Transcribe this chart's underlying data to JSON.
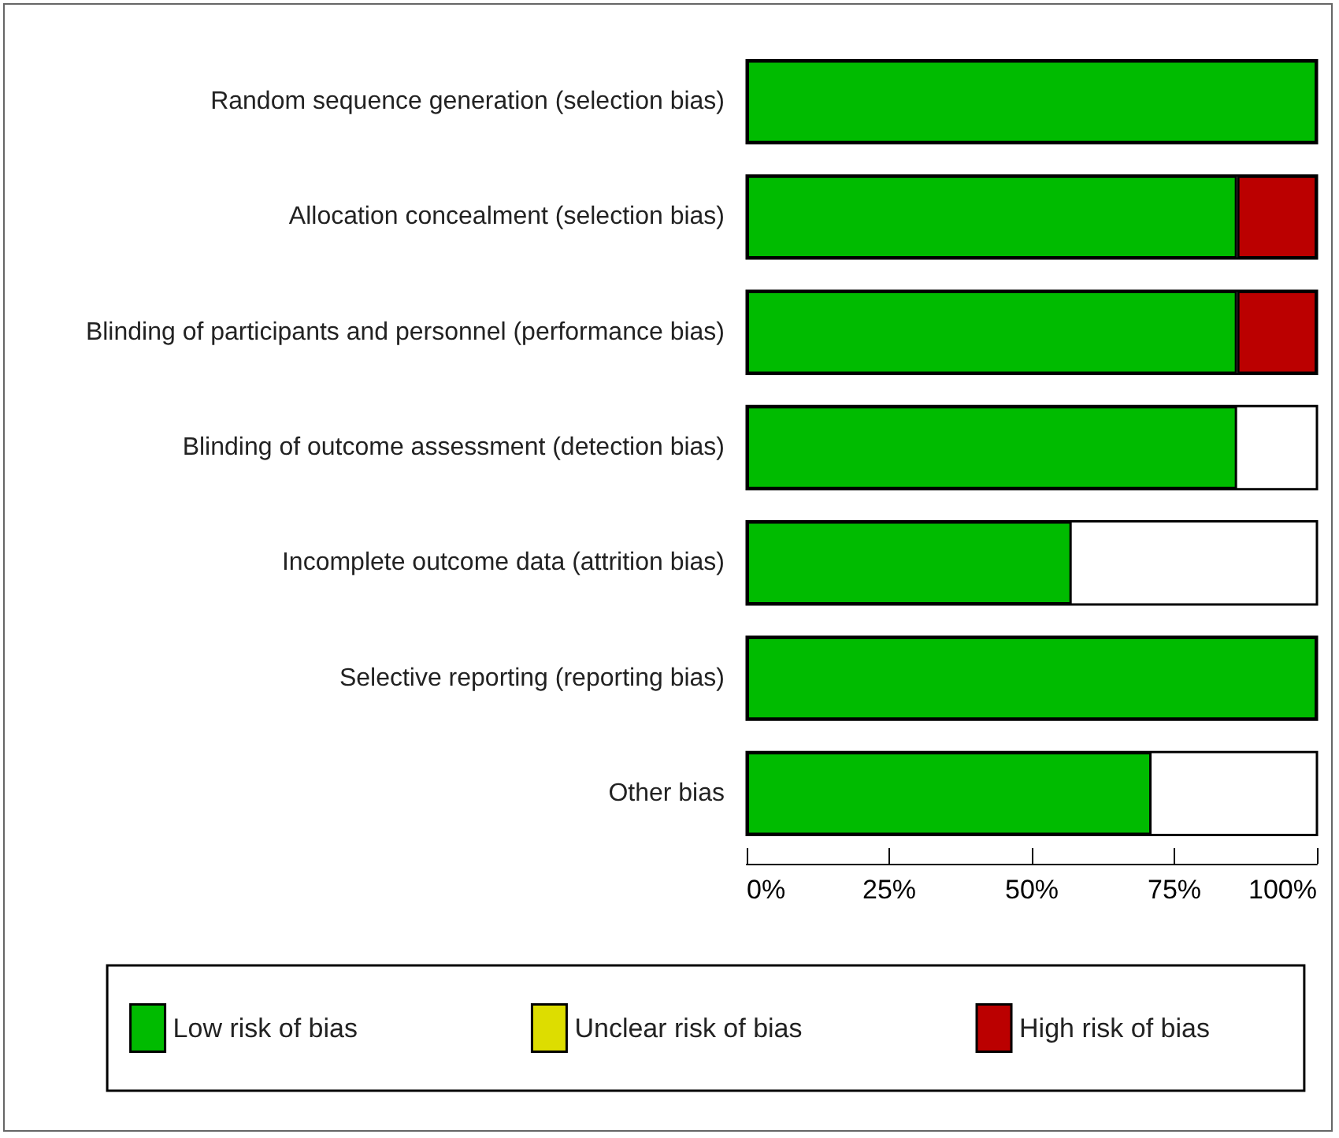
{
  "chart_data": {
    "type": "bar",
    "orientation": "horizontal",
    "stacked": true,
    "categories": [
      "Random sequence generation (selection bias)",
      "Allocation concealment (selection bias)",
      "Blinding of participants and personnel (performance bias)",
      "Blinding of outcome assessment (detection bias)",
      "Incomplete outcome data (attrition bias)",
      "Selective reporting (reporting bias)",
      "Other bias"
    ],
    "series": [
      {
        "name": "Low risk of bias",
        "color": "#00bb00",
        "values": [
          100,
          86,
          86,
          86,
          57,
          100,
          71
        ]
      },
      {
        "name": "Unclear risk of bias",
        "color": "#dddd00",
        "values": [
          null,
          null,
          null,
          null,
          null,
          null,
          null
        ]
      },
      {
        "name": "High risk of bias",
        "color": "#bb0000",
        "values": [
          null,
          14,
          14,
          null,
          null,
          null,
          null
        ]
      }
    ],
    "xlim": [
      0,
      100
    ],
    "xticks": [
      {
        "value": 0,
        "label": "0%"
      },
      {
        "value": 25,
        "label": "25%"
      },
      {
        "value": 50,
        "label": "50%"
      },
      {
        "value": 75,
        "label": "75%"
      },
      {
        "value": 100,
        "label": "100%"
      }
    ],
    "grid": false,
    "legend": "bottom"
  }
}
